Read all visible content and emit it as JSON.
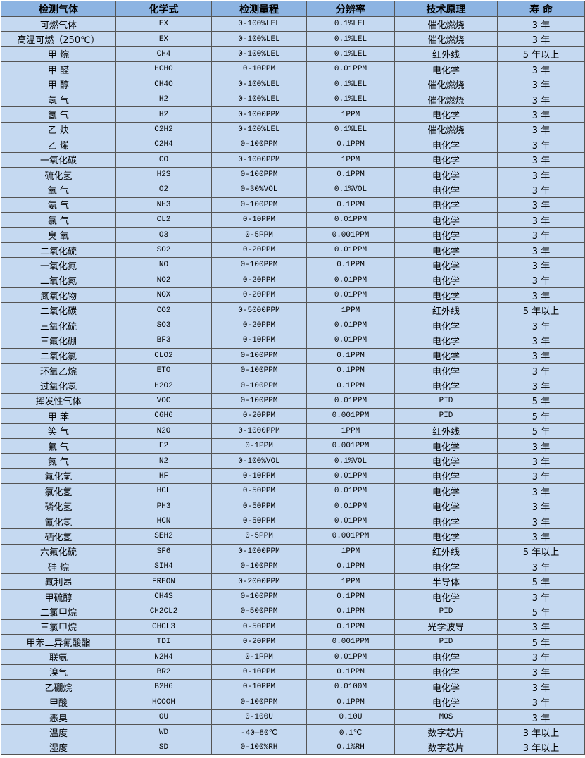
{
  "headers": [
    "检测气体",
    "化学式",
    "检测量程",
    "分辨率",
    "技术原理",
    "寿 命"
  ],
  "rows": [
    [
      "可燃气体",
      "EX",
      "0-100%LEL",
      "0.1%LEL",
      "催化燃烧",
      "3 年"
    ],
    [
      "高温可燃（250℃）",
      "EX",
      "0-100%LEL",
      "0.1%LEL",
      "催化燃烧",
      "3 年"
    ],
    [
      "甲 烷",
      "CH4",
      "0-100%LEL",
      "0.1%LEL",
      "红外线",
      "5 年以上"
    ],
    [
      "甲 醛",
      "HCHO",
      "0-10PPM",
      "0.01PPM",
      "电化学",
      "3 年"
    ],
    [
      "甲 醇",
      "CH4O",
      "0-100%LEL",
      "0.1%LEL",
      "催化燃烧",
      "3 年"
    ],
    [
      "氢 气",
      "H2",
      "0-100%LEL",
      "0.1%LEL",
      "催化燃烧",
      "3 年"
    ],
    [
      "氢 气",
      "H2",
      "0-1000PPM",
      "1PPM",
      "电化学",
      "3 年"
    ],
    [
      "乙 炔",
      "C2H2",
      "0-100%LEL",
      "0.1%LEL",
      "催化燃烧",
      "3 年"
    ],
    [
      "乙 烯",
      "C2H4",
      "0-100PPM",
      "0.1PPM",
      "电化学",
      "3 年"
    ],
    [
      "一氧化碳",
      "CO",
      "0-1000PPM",
      "1PPM",
      "电化学",
      "3 年"
    ],
    [
      "硫化氢",
      "H2S",
      "0-100PPM",
      "0.1PPM",
      "电化学",
      "3 年"
    ],
    [
      "氧 气",
      "O2",
      "0-30%VOL",
      "0.1%VOL",
      "电化学",
      "3 年"
    ],
    [
      "氨 气",
      "NH3",
      "0-100PPM",
      "0.1PPM",
      "电化学",
      "3 年"
    ],
    [
      "氯 气",
      "CL2",
      "0-10PPM",
      "0.01PPM",
      "电化学",
      "3 年"
    ],
    [
      "臭 氧",
      "O3",
      "0-5PPM",
      "0.001PPM",
      "电化学",
      "3 年"
    ],
    [
      "二氧化硫",
      "SO2",
      "0-20PPM",
      "0.01PPM",
      "电化学",
      "3 年"
    ],
    [
      "一氧化氮",
      "NO",
      "0-100PPM",
      "0.1PPM",
      "电化学",
      "3 年"
    ],
    [
      "二氧化氮",
      "NO2",
      "0-20PPM",
      "0.01PPM",
      "电化学",
      "3 年"
    ],
    [
      "氮氧化物",
      "NOX",
      "0-20PPM",
      "0.01PPM",
      "电化学",
      "3 年"
    ],
    [
      "二氧化碳",
      "CO2",
      "0-5000PPM",
      "1PPM",
      "红外线",
      "5 年以上"
    ],
    [
      "三氧化硫",
      "SO3",
      "0-20PPM",
      "0.01PPM",
      "电化学",
      "3 年"
    ],
    [
      "三氟化硼",
      "BF3",
      "0-10PPM",
      "0.01PPM",
      "电化学",
      "3 年"
    ],
    [
      "二氧化氯",
      "CLO2",
      "0-100PPM",
      "0.1PPM",
      "电化学",
      "3 年"
    ],
    [
      "环氧乙烷",
      "ETO",
      "0-100PPM",
      "0.1PPM",
      "电化学",
      "3 年"
    ],
    [
      "过氧化氢",
      "H2O2",
      "0-100PPM",
      "0.1PPM",
      "电化学",
      "3 年"
    ],
    [
      "挥发性气体",
      "VOC",
      "0-100PPM",
      "0.01PPM",
      "PID",
      "5 年"
    ],
    [
      "甲 苯",
      "C6H6",
      "0-20PPM",
      "0.001PPM",
      "PID",
      "5 年"
    ],
    [
      "笑 气",
      "N2O",
      "0-1000PPM",
      "1PPM",
      "红外线",
      "5 年"
    ],
    [
      "氟 气",
      "F2",
      "0-1PPM",
      "0.001PPM",
      "电化学",
      "3 年"
    ],
    [
      "氮 气",
      "N2",
      "0-100%VOL",
      "0.1%VOL",
      "电化学",
      "3 年"
    ],
    [
      "氟化氢",
      "HF",
      "0-10PPM",
      "0.01PPM",
      "电化学",
      "3 年"
    ],
    [
      "氯化氢",
      "HCL",
      "0-50PPM",
      "0.01PPM",
      "电化学",
      "3 年"
    ],
    [
      "磷化氢",
      "PH3",
      "0-50PPM",
      "0.01PPM",
      "电化学",
      "3 年"
    ],
    [
      "氰化氢",
      "HCN",
      "0-50PPM",
      "0.01PPM",
      "电化学",
      "3 年"
    ],
    [
      "硒化氢",
      "SEH2",
      "0-5PPM",
      "0.001PPM",
      "电化学",
      "3 年"
    ],
    [
      "六氟化硫",
      "SF6",
      "0-1000PPM",
      "1PPM",
      "红外线",
      "5 年以上"
    ],
    [
      "硅 烷",
      "SIH4",
      "0-100PPM",
      "0.1PPM",
      "电化学",
      "3 年"
    ],
    [
      "氟利昂",
      "FREON",
      "0-2000PPM",
      "1PPM",
      "半导体",
      "5 年"
    ],
    [
      "甲硫醇",
      "CH4S",
      "0-100PPM",
      "0.1PPM",
      "电化学",
      "3 年"
    ],
    [
      "二氯甲烷",
      "CH2CL2",
      "0-500PPM",
      "0.1PPM",
      "PID",
      "5 年"
    ],
    [
      "三氯甲烷",
      "CHCL3",
      "0-50PPM",
      "0.1PPM",
      "光学波导",
      "3 年"
    ],
    [
      "甲苯二异氰酸酯",
      "TDI",
      "0-20PPM",
      "0.001PPM",
      "PID",
      "5 年"
    ],
    [
      "联氨",
      "N2H4",
      "0-1PPM",
      "0.01PPM",
      "电化学",
      "3 年"
    ],
    [
      "溴气",
      "BR2",
      "0-10PPM",
      "0.1PPM",
      "电化学",
      "3 年"
    ],
    [
      "乙硼烷",
      "B2H6",
      "0-10PPM",
      "0.0100M",
      "电化学",
      "3 年"
    ],
    [
      "甲酸",
      "HCOOH",
      "0-100PPM",
      "0.1PPM",
      "电化学",
      "3 年"
    ],
    [
      "恶臭",
      "OU",
      "0-100U",
      "0.10U",
      "MOS",
      "3 年"
    ],
    [
      "温度",
      "WD",
      "-40—80℃",
      "0.1℃",
      "数字芯片",
      "3 年以上"
    ],
    [
      "湿度",
      "SD",
      "0-100%RH",
      "0.1%RH",
      "数字芯片",
      "3 年以上"
    ]
  ],
  "colors": {
    "header_bg": "#8db4e2",
    "row_bg": "#c5d9f1",
    "border": "#555555"
  }
}
